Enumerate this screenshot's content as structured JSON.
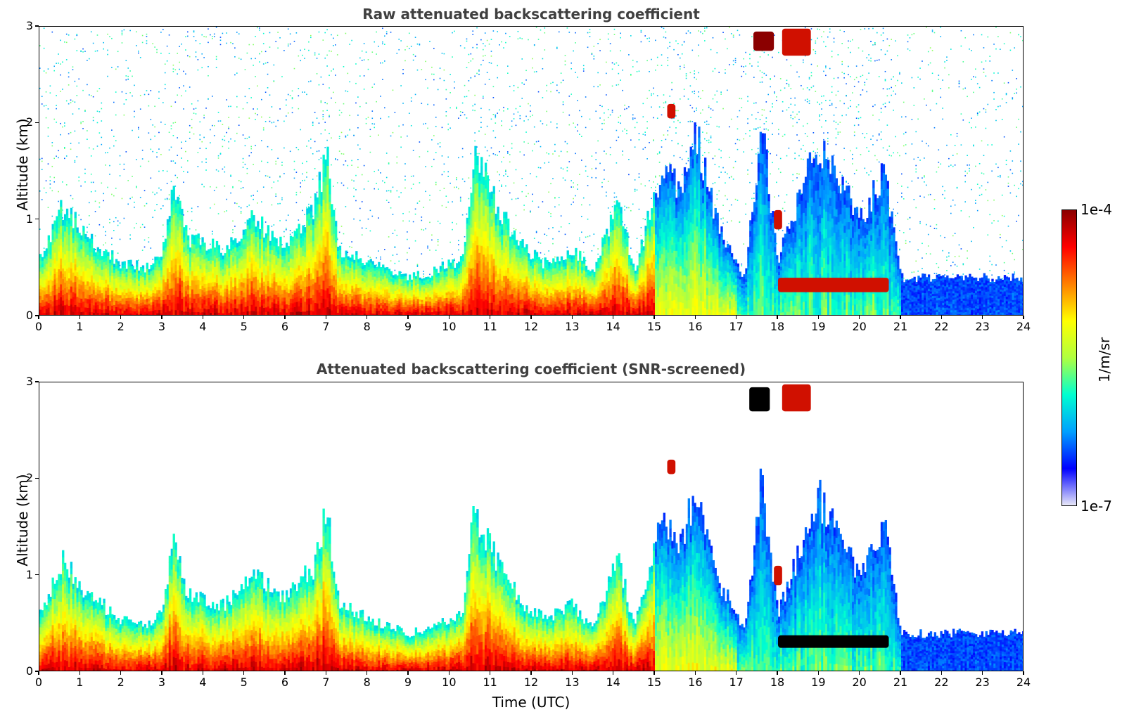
{
  "chart_data": [
    {
      "type": "heatmap",
      "title": "Raw attenuated backscattering coefficient",
      "xlabel": "",
      "ylabel": "Altitude (km)",
      "xlim": [
        0,
        24
      ],
      "ylim": [
        0,
        3
      ],
      "xticks": [
        "0",
        "1",
        "2",
        "3",
        "4",
        "5",
        "6",
        "7",
        "8",
        "9",
        "10",
        "11",
        "12",
        "13",
        "14",
        "15",
        "16",
        "17",
        "18",
        "19",
        "20",
        "21",
        "22",
        "23",
        "24"
      ],
      "yticks": [
        "0",
        "1",
        "2",
        "3"
      ],
      "boundary_layer_top_km": [
        [
          0,
          0.6
        ],
        [
          0.6,
          1.15
        ],
        [
          1.2,
          0.8
        ],
        [
          2,
          0.55
        ],
        [
          2.7,
          0.5
        ],
        [
          3.0,
          0.7
        ],
        [
          3.3,
          1.4
        ],
        [
          3.6,
          0.8
        ],
        [
          4.5,
          0.7
        ],
        [
          5.2,
          1.0
        ],
        [
          6,
          0.75
        ],
        [
          6.7,
          1.1
        ],
        [
          7,
          1.7
        ],
        [
          7.3,
          0.7
        ],
        [
          8,
          0.55
        ],
        [
          9,
          0.4
        ],
        [
          9.5,
          0.45
        ],
        [
          10.3,
          0.6
        ],
        [
          10.6,
          1.7
        ],
        [
          11.2,
          1.1
        ],
        [
          11.7,
          0.75
        ],
        [
          12.3,
          0.55
        ],
        [
          13,
          0.7
        ],
        [
          13.5,
          0.45
        ],
        [
          14.1,
          1.2
        ],
        [
          14.5,
          0.45
        ],
        [
          15.2,
          1.6
        ],
        [
          15.6,
          1.3
        ],
        [
          16,
          1.9
        ],
        [
          16.5,
          1.0
        ],
        [
          17.2,
          0.4
        ],
        [
          17.6,
          2.0
        ],
        [
          18,
          0.6
        ],
        [
          19,
          1.8
        ],
        [
          20,
          1.0
        ],
        [
          20.6,
          1.5
        ],
        [
          21,
          0.4
        ],
        [
          24,
          0.4
        ]
      ],
      "features": [
        {
          "t0": 17.4,
          "t1": 17.9,
          "alt0": 2.75,
          "alt1": 2.95,
          "level": "max"
        },
        {
          "t0": 18.1,
          "t1": 18.8,
          "alt0": 2.7,
          "alt1": 2.98,
          "level": "high"
        },
        {
          "t0": 15.3,
          "t1": 15.5,
          "alt0": 2.05,
          "alt1": 2.2,
          "level": "high"
        },
        {
          "t0": 17.9,
          "t1": 18.1,
          "alt0": 0.9,
          "alt1": 1.1,
          "level": "high"
        },
        {
          "t0": 18.0,
          "t1": 20.7,
          "alt0": 0.25,
          "alt1": 0.4,
          "level": "high"
        }
      ],
      "noise": true
    },
    {
      "type": "heatmap",
      "title": "Attenuated backscattering coefficient (SNR-screened)",
      "xlabel": "Time (UTC)",
      "ylabel": "Altitude (km)",
      "xlim": [
        0,
        24
      ],
      "ylim": [
        0,
        3
      ],
      "xticks": [
        "0",
        "1",
        "2",
        "3",
        "4",
        "5",
        "6",
        "7",
        "8",
        "9",
        "10",
        "11",
        "12",
        "13",
        "14",
        "15",
        "16",
        "17",
        "18",
        "19",
        "20",
        "21",
        "22",
        "23",
        "24"
      ],
      "yticks": [
        "0",
        "1",
        "2",
        "3"
      ],
      "boundary_layer_top_km": [
        [
          0,
          0.6
        ],
        [
          0.6,
          1.15
        ],
        [
          1.2,
          0.8
        ],
        [
          2,
          0.55
        ],
        [
          2.7,
          0.5
        ],
        [
          3.0,
          0.7
        ],
        [
          3.3,
          1.4
        ],
        [
          3.6,
          0.8
        ],
        [
          4.5,
          0.7
        ],
        [
          5.2,
          1.0
        ],
        [
          6,
          0.75
        ],
        [
          6.7,
          1.1
        ],
        [
          7,
          1.7
        ],
        [
          7.3,
          0.7
        ],
        [
          8,
          0.55
        ],
        [
          9,
          0.4
        ],
        [
          9.5,
          0.45
        ],
        [
          10.3,
          0.6
        ],
        [
          10.6,
          1.7
        ],
        [
          11.2,
          1.1
        ],
        [
          11.7,
          0.75
        ],
        [
          12.3,
          0.55
        ],
        [
          13,
          0.7
        ],
        [
          13.5,
          0.45
        ],
        [
          14.1,
          1.2
        ],
        [
          14.5,
          0.45
        ],
        [
          15.2,
          1.6
        ],
        [
          15.6,
          1.3
        ],
        [
          16,
          1.9
        ],
        [
          16.5,
          1.0
        ],
        [
          17.2,
          0.4
        ],
        [
          17.6,
          2.0
        ],
        [
          18,
          0.6
        ],
        [
          19,
          1.8
        ],
        [
          20,
          1.0
        ],
        [
          20.6,
          1.5
        ],
        [
          21,
          0.4
        ],
        [
          24,
          0.4
        ]
      ],
      "features": [
        {
          "t0": 17.3,
          "t1": 17.8,
          "alt0": 2.7,
          "alt1": 2.95,
          "level": "black"
        },
        {
          "t0": 18.1,
          "t1": 18.8,
          "alt0": 2.7,
          "alt1": 2.98,
          "level": "high"
        },
        {
          "t0": 15.3,
          "t1": 15.5,
          "alt0": 2.05,
          "alt1": 2.2,
          "level": "high"
        },
        {
          "t0": 17.9,
          "t1": 18.1,
          "alt0": 0.9,
          "alt1": 1.1,
          "level": "high"
        },
        {
          "t0": 18.0,
          "t1": 20.7,
          "alt0": 0.25,
          "alt1": 0.38,
          "level": "black"
        }
      ],
      "noise": false
    }
  ],
  "colorbar": {
    "max_label": "1e-4",
    "min_label": "1e-7",
    "label": "1/m/sr",
    "colormap": [
      "#e8e8f8",
      "#0000ff",
      "#00a0ff",
      "#00ffd0",
      "#b0ff40",
      "#ffff00",
      "#ff8000",
      "#ff0000",
      "#8b0000"
    ]
  }
}
